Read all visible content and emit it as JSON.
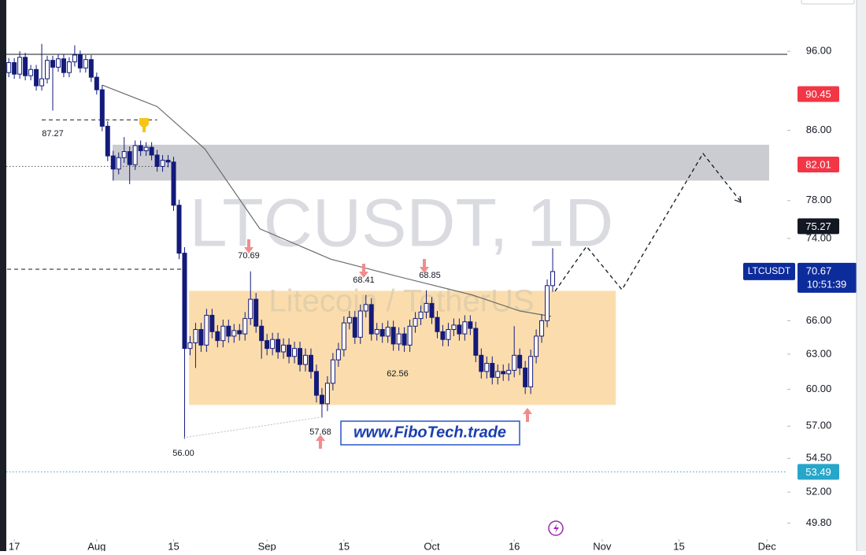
{
  "chart_data": {
    "type": "candlestick",
    "log_scale": true,
    "xlim": [
      -2.6,
      140.7
    ],
    "ylim": [
      48.7,
      103.1
    ],
    "xticks": [
      {
        "value": 0,
        "label": "17"
      },
      {
        "value": 15,
        "label": "Aug"
      },
      {
        "value": 29,
        "label": "15"
      },
      {
        "value": 46,
        "label": "Sep"
      },
      {
        "value": 60,
        "label": "15"
      },
      {
        "value": 76,
        "label": "Oct"
      },
      {
        "value": 91,
        "label": "16"
      },
      {
        "value": 107,
        "label": "Nov"
      },
      {
        "value": 121,
        "label": "15"
      },
      {
        "value": 137,
        "label": "Dec"
      }
    ],
    "yticks": [
      {
        "value": 96,
        "label": "96.00"
      },
      {
        "value": 86,
        "label": "86.00"
      },
      {
        "value": 78,
        "label": "78.00"
      },
      {
        "value": 74,
        "label": "74.00"
      },
      {
        "value": 66,
        "label": "66.00"
      },
      {
        "value": 63,
        "label": "63.00"
      },
      {
        "value": 60,
        "label": "60.00"
      },
      {
        "value": 57,
        "label": "57.00"
      },
      {
        "value": 54.5,
        "label": "54.50"
      },
      {
        "value": 52,
        "label": "52.00"
      },
      {
        "value": 49.8,
        "label": "49.80"
      }
    ],
    "up_color": "#ffffff",
    "down_color": "#131a7a",
    "x": [
      -1,
      0,
      1,
      2,
      3,
      4,
      5,
      6,
      7,
      8,
      9,
      10,
      11,
      12,
      13,
      14,
      15,
      16,
      17,
      18,
      19,
      20,
      21,
      22,
      23,
      24,
      25,
      26,
      27,
      28,
      29,
      30,
      31,
      32,
      33,
      34,
      35,
      36,
      37,
      38,
      39,
      40,
      41,
      42,
      43,
      44,
      45,
      46,
      47,
      48,
      49,
      50,
      51,
      52,
      53,
      54,
      55,
      56,
      57,
      58,
      59,
      60,
      61,
      62,
      63,
      64,
      65,
      66,
      67,
      68,
      69,
      70,
      71,
      72,
      73,
      74,
      75,
      76,
      77,
      78,
      79,
      80,
      81,
      82,
      83,
      84,
      85,
      86,
      87,
      88,
      89,
      90,
      91,
      92,
      93,
      94,
      95,
      96,
      97,
      98
    ],
    "open": [
      93.2,
      94.5,
      93.0,
      95.2,
      92.8,
      93.6,
      91.5,
      92.4,
      94.8,
      93.9,
      95.0,
      93.2,
      94.6,
      95.5,
      93.8,
      94.9,
      92.6,
      91.0,
      86.5,
      83.0,
      81.5,
      82.8,
      83.5,
      82.0,
      84.2,
      83.6,
      84.0,
      83.1,
      81.8,
      82.5,
      82.3,
      77.5,
      72.5,
      63.5,
      64.0,
      65.2,
      63.8,
      66.5,
      65.0,
      64.2,
      65.5,
      64.6,
      65.1,
      64.8,
      66.2,
      68.0,
      65.5,
      64.2,
      63.5,
      64.3,
      63.2,
      63.8,
      62.8,
      63.5,
      62.1,
      62.9,
      61.5,
      59.5,
      58.8,
      60.5,
      62.5,
      63.4,
      65.8,
      66.3,
      64.5,
      66.9,
      67.5,
      64.8,
      65.2,
      64.6,
      65.4,
      63.9,
      64.8,
      63.8,
      65.5,
      66.2,
      66.8,
      67.6,
      66.3,
      65.0,
      64.3,
      65.2,
      65.6,
      64.8,
      65.9,
      65.3,
      62.9,
      61.5,
      62.2,
      61.0,
      61.5,
      61.3,
      61.6,
      62.9,
      61.8,
      60.2,
      62.8,
      64.6,
      66.0,
      69.3
    ],
    "high": [
      95.1,
      95.1,
      96.0,
      95.8,
      94.2,
      94.2,
      97.0,
      95.4,
      95.4,
      95.6,
      95.6,
      95.2,
      96.8,
      96.1,
      95.5,
      95.5,
      93.2,
      91.6,
      87.1,
      83.6,
      83.4,
      85.2,
      84.1,
      84.8,
      84.8,
      84.6,
      84.6,
      83.7,
      83.1,
      83.1,
      82.9,
      78.1,
      73.1,
      64.6,
      65.8,
      65.8,
      67.1,
      67.1,
      65.6,
      66.1,
      66.1,
      65.7,
      65.7,
      66.8,
      70.69,
      68.6,
      66.1,
      64.8,
      64.9,
      64.9,
      64.4,
      64.4,
      64.1,
      64.1,
      63.5,
      63.5,
      62.1,
      60.1,
      61.1,
      63.1,
      64.0,
      66.4,
      66.9,
      66.9,
      67.5,
      68.41,
      68.1,
      65.8,
      65.8,
      66.0,
      66.0,
      65.4,
      65.4,
      66.1,
      66.8,
      67.4,
      68.85,
      68.2,
      66.9,
      65.6,
      65.8,
      66.2,
      66.2,
      66.5,
      66.5,
      65.9,
      63.5,
      62.8,
      62.8,
      62.1,
      62.1,
      62.2,
      65.5,
      63.5,
      62.4,
      63.4,
      65.2,
      66.6,
      69.9,
      73.0
    ],
    "low": [
      92.6,
      92.4,
      92.4,
      92.2,
      92.2,
      90.9,
      90.9,
      91.8,
      88.4,
      93.3,
      92.6,
      92.6,
      94.0,
      93.2,
      93.2,
      92.0,
      90.4,
      85.9,
      82.4,
      80.2,
      80.9,
      82.2,
      79.8,
      81.4,
      83.0,
      83.0,
      82.5,
      81.2,
      81.2,
      81.7,
      76.9,
      71.9,
      56.0,
      62.9,
      61.8,
      63.2,
      63.2,
      64.4,
      63.6,
      63.6,
      64.0,
      64.0,
      64.2,
      64.2,
      65.6,
      64.9,
      62.6,
      62.9,
      62.9,
      62.6,
      62.6,
      62.2,
      62.2,
      61.5,
      61.5,
      60.9,
      58.9,
      57.68,
      58.2,
      59.9,
      61.9,
      62.8,
      65.2,
      63.9,
      63.9,
      66.3,
      64.2,
      64.2,
      64.0,
      64.0,
      63.3,
      63.3,
      63.2,
      63.2,
      64.9,
      65.6,
      66.2,
      65.7,
      64.4,
      63.7,
      63.7,
      64.6,
      64.2,
      64.2,
      64.7,
      62.3,
      60.9,
      60.9,
      60.4,
      60.4,
      60.7,
      60.7,
      61.0,
      61.2,
      59.6,
      59.6,
      62.2,
      64.0,
      65.4,
      68.7
    ],
    "close": [
      94.5,
      93.0,
      95.2,
      92.8,
      93.6,
      91.5,
      92.4,
      94.8,
      93.9,
      95.0,
      93.2,
      94.6,
      95.5,
      93.8,
      94.9,
      92.6,
      91.0,
      86.5,
      83.0,
      81.5,
      82.8,
      83.5,
      82.0,
      84.2,
      83.6,
      84.0,
      83.1,
      81.8,
      82.5,
      82.3,
      77.5,
      72.5,
      63.5,
      64.0,
      65.2,
      63.8,
      66.5,
      65.0,
      64.2,
      65.5,
      64.6,
      65.1,
      64.8,
      66.2,
      68.0,
      65.5,
      64.2,
      63.5,
      64.3,
      63.2,
      63.8,
      62.8,
      63.5,
      62.1,
      62.9,
      61.5,
      59.5,
      58.8,
      60.5,
      62.5,
      63.4,
      65.8,
      66.3,
      64.5,
      66.9,
      67.5,
      64.8,
      65.2,
      64.6,
      65.4,
      63.9,
      64.8,
      63.8,
      65.5,
      66.2,
      66.8,
      67.6,
      66.3,
      65.0,
      64.3,
      65.2,
      65.6,
      64.8,
      65.9,
      65.3,
      62.9,
      61.5,
      62.2,
      61.0,
      61.5,
      61.3,
      61.6,
      62.9,
      61.8,
      60.2,
      62.8,
      64.6,
      66.0,
      69.3,
      70.67
    ],
    "moving_average": {
      "color": "#6b6b6b",
      "x": [
        16,
        26,
        34.7,
        44.7,
        57.6,
        69,
        83.4,
        92,
        97.7
      ],
      "values": [
        91.6,
        88.9,
        83.8,
        75.0,
        71.9,
        70.3,
        68.4,
        66.9,
        66.4
      ]
    },
    "zones": [
      {
        "x": [
          17.9,
          137.4
        ],
        "y": [
          80.2,
          84.3
        ],
        "color": "#c4c6cc"
      },
      {
        "x": [
          31.8,
          109.5
        ],
        "y": [
          58.7,
          68.8
        ],
        "color": "#fbd9a4"
      }
    ],
    "levels": [
      {
        "value": 95.6,
        "x": [
          -2.6,
          140.7
        ],
        "style": "solid",
        "color": "#131722"
      },
      {
        "value": 87.27,
        "x": [
          5,
          26
        ],
        "style": "dashed",
        "color": "#131722"
      },
      {
        "value": 81.8,
        "x": [
          -2.6,
          28
        ],
        "style": "dotted",
        "color": "#555555"
      },
      {
        "value": 70.9,
        "x": [
          -2.6,
          30.5
        ],
        "style": "dashed",
        "color": "#131722"
      },
      {
        "value": 53.49,
        "x": [
          -2.6,
          140.7
        ],
        "style": "dotted",
        "color": "#26a6c9"
      }
    ],
    "annotations": [
      "87.27",
      "70.69",
      "68.41",
      "68.85",
      "62.56",
      "57.68",
      "56.00"
    ],
    "watermark": {
      "symbol_line": "LTCUSDT, 1D",
      "name_line": "Litecoin / TetherUS"
    },
    "website": "www.FiboTech.trade",
    "price_tags": [
      {
        "value": 90.45,
        "color": "#f23645"
      },
      {
        "value": 82.01,
        "color": "#f23645"
      },
      {
        "value": 75.27,
        "color": "#131722"
      },
      {
        "value": 53.49,
        "color": "#26a6c9"
      }
    ],
    "last_price": {
      "symbol": "LTCUSDT",
      "value": 70.67,
      "countdown": "10:51:39",
      "color": "#0d2c9c"
    }
  }
}
